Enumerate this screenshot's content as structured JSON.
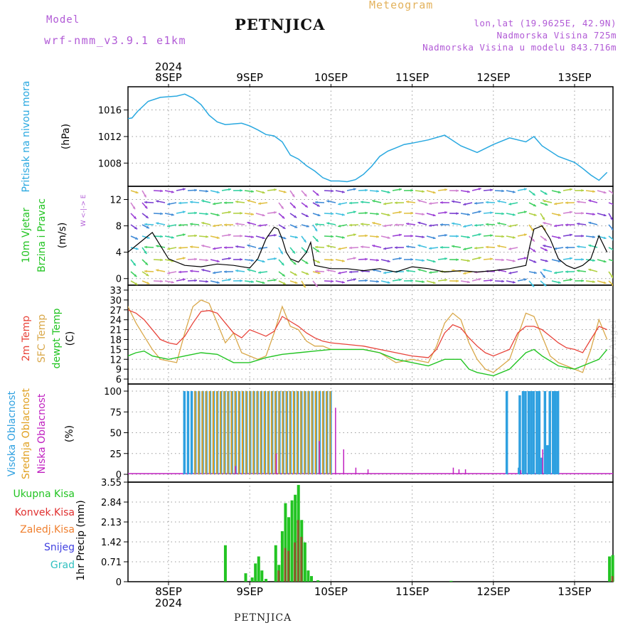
{
  "header": {
    "model_label": "Model",
    "model_name": "wrf-nmm_v3.9.1 e1km",
    "title": "PETNJICA",
    "meteogram": "Meteogram",
    "lonlat": "lon,lat (19.9625E, 42.9N)",
    "altitude": "Nadmorska Visina 725m",
    "model_altitude": "Nadmorska Visina u modelu 843.716m"
  },
  "footer": {
    "station": "PETNJICA",
    "credit": "made by Angel"
  },
  "colors": {
    "pressure": "#28a8e0",
    "t2m": "#e8433a",
    "sfc": "#d9a84a",
    "dewpt": "#22c422",
    "wind_speed": "#000000",
    "gust": "#ff6a2a",
    "cloud_high": "#2ea0e0",
    "cloud_mid": "#e0a020",
    "cloud_low": "#c020c0",
    "rain_total": "#22c422",
    "rain_conv": "#e03030",
    "rain_strat": "#f08030",
    "snow": "#4040e0",
    "grad": "#30c0c0"
  },
  "chart_data": [
    {
      "type": "line",
      "panel": "pressure",
      "ylabel": "Pritisak na nivou mora",
      "unit": "(hPa)",
      "ylim": [
        1004.5,
        1019.5
      ],
      "yticks": [
        "1008",
        "1012",
        "1016"
      ],
      "x_days": [
        {
          "label": "8SEP",
          "year": "2024"
        },
        {
          "label": "9SEP"
        },
        {
          "label": "10SEP"
        },
        {
          "label": "11SEP"
        },
        {
          "label": "12SEP"
        },
        {
          "label": "13SEP"
        }
      ],
      "series": [
        {
          "x": [
            -0.6,
            -0.55,
            -0.45,
            -0.38,
            -0.25,
            -0.1,
            0.1,
            0.2,
            0.3,
            0.4,
            0.5,
            0.6,
            0.7,
            0.8,
            0.9,
            1.0,
            1.1,
            1.2,
            1.3,
            1.4,
            1.5,
            1.6,
            1.7,
            1.8,
            1.9,
            2.0,
            2.1,
            2.2,
            2.3,
            2.4,
            2.5,
            2.6,
            2.7,
            2.8,
            2.9,
            3.0,
            3.2,
            3.4,
            3.6,
            3.8,
            4.0,
            4.2,
            4.4,
            4.5,
            4.6,
            4.8,
            5.0,
            5.1,
            5.2,
            5.3,
            5.4
          ],
          "y": [
            1015.5,
            1014.6,
            1014.8,
            1015.8,
            1017.3,
            1017.9,
            1018.1,
            1018.4,
            1017.8,
            1016.8,
            1015.2,
            1014.2,
            1013.8,
            1013.9,
            1014.0,
            1013.6,
            1013.0,
            1012.3,
            1012.1,
            1011.2,
            1009.2,
            1008.6,
            1007.6,
            1006.8,
            1005.8,
            1005.3,
            1005.3,
            1005.2,
            1005.5,
            1006.3,
            1007.5,
            1009.0,
            1009.8,
            1010.3,
            1010.8,
            1011.0,
            1011.5,
            1012.2,
            1010.6,
            1009.6,
            1010.8,
            1011.8,
            1011.2,
            1012.0,
            1010.6,
            1009.0,
            1008.1,
            1007.2,
            1006.2,
            1005.4,
            1006.6
          ]
        }
      ]
    },
    {
      "type": "line",
      "panel": "wind",
      "ylabel": [
        "10m Vjetar",
        "Brzina i Pravac"
      ],
      "unit": "(m/s)",
      "compass": "N\n|\nW <-|-> E\n|\nS",
      "ylim": [
        -1,
        14
      ],
      "yticks": [
        "0",
        "4",
        "8",
        "12"
      ],
      "series": [
        {
          "name": "speed",
          "x": [
            -0.6,
            -0.5,
            -0.4,
            -0.3,
            -0.2,
            -0.1,
            0.0,
            0.2,
            0.4,
            0.6,
            0.8,
            1.0,
            1.1,
            1.2,
            1.3,
            1.35,
            1.4,
            1.45,
            1.5,
            1.6,
            1.7,
            1.75,
            1.8,
            2.0,
            2.2,
            2.4,
            2.6,
            2.8,
            3.0,
            3.2,
            3.4,
            3.6,
            3.8,
            4.0,
            4.2,
            4.4,
            4.45,
            4.5,
            4.6,
            4.7,
            4.8,
            4.9,
            5.0,
            5.1,
            5.2,
            5.3,
            5.4
          ],
          "y": [
            3,
            4,
            5,
            6,
            7,
            5,
            3,
            2,
            1.8,
            2.2,
            2.0,
            1.6,
            3.0,
            6.0,
            7.8,
            7.5,
            6.0,
            4.0,
            3.0,
            2.5,
            4.0,
            5.5,
            2.0,
            1.5,
            1.5,
            1.2,
            1.5,
            1.0,
            1.8,
            1.5,
            1.0,
            1.2,
            1.0,
            1.2,
            1.5,
            2.0,
            5.0,
            7.5,
            8.0,
            6.0,
            3.0,
            2.0,
            1.5,
            2.0,
            3.0,
            6.5,
            4.0
          ]
        }
      ]
    },
    {
      "type": "line",
      "panel": "temperature",
      "ylabel": [
        "2m Temp",
        "SFC Temp",
        "dewpt Temp"
      ],
      "unit": "(C)",
      "ylim": [
        4.5,
        34.5
      ],
      "yticks": [
        "6",
        "9",
        "12",
        "15",
        "18",
        "21",
        "24",
        "27",
        "30",
        "33"
      ],
      "series": [
        {
          "name": "2m Temp",
          "x": [
            -0.6,
            -0.5,
            -0.4,
            -0.3,
            -0.2,
            -0.1,
            0.0,
            0.1,
            0.2,
            0.3,
            0.4,
            0.5,
            0.6,
            0.7,
            0.8,
            0.9,
            1.0,
            1.1,
            1.2,
            1.3,
            1.4,
            1.5,
            1.6,
            1.7,
            1.8,
            1.9,
            2.0,
            2.2,
            2.4,
            2.6,
            2.8,
            3.0,
            3.2,
            3.3,
            3.4,
            3.5,
            3.6,
            3.7,
            3.8,
            3.9,
            4.0,
            4.2,
            4.3,
            4.4,
            4.5,
            4.6,
            4.7,
            4.8,
            4.9,
            5.0,
            5.1,
            5.2,
            5.3,
            5.4
          ],
          "y": [
            26,
            27,
            26,
            24,
            21,
            18,
            17,
            16.5,
            19,
            23,
            26.5,
            26.8,
            26,
            23,
            20,
            18.5,
            21,
            20,
            19,
            20.5,
            25,
            23.5,
            22,
            20,
            18.5,
            17.5,
            17,
            16.5,
            16,
            15,
            14,
            13,
            12.5,
            15,
            20,
            22.5,
            21.5,
            18.5,
            16,
            14,
            13,
            15,
            20,
            22,
            22,
            21,
            19,
            17,
            15.5,
            15,
            14,
            18,
            22,
            21
          ]
        },
        {
          "name": "SFC Temp",
          "x": [
            -0.6,
            -0.5,
            -0.4,
            -0.3,
            -0.2,
            -0.1,
            0.0,
            0.1,
            0.2,
            0.3,
            0.4,
            0.5,
            0.6,
            0.7,
            0.8,
            0.9,
            1.0,
            1.1,
            1.2,
            1.3,
            1.4,
            1.5,
            1.6,
            1.7,
            1.8,
            1.9,
            2.0,
            2.2,
            2.4,
            2.6,
            2.8,
            3.0,
            3.2,
            3.3,
            3.4,
            3.5,
            3.6,
            3.7,
            3.8,
            3.9,
            4.0,
            4.2,
            4.3,
            4.4,
            4.5,
            4.6,
            4.7,
            4.8,
            4.9,
            5.0,
            5.1,
            5.2,
            5.3,
            5.4
          ],
          "y": [
            33,
            28,
            23,
            19,
            15,
            12,
            11.5,
            11,
            20,
            28,
            30,
            29,
            23,
            17,
            20,
            14,
            13,
            12,
            13,
            20,
            28,
            22,
            21,
            17.5,
            16,
            16,
            15,
            15,
            15,
            14,
            11,
            12,
            11,
            16,
            23,
            26,
            24,
            17,
            12,
            9,
            8,
            12,
            19,
            26,
            25,
            19,
            13,
            11,
            10,
            9,
            8,
            15,
            24,
            18
          ]
        },
        {
          "name": "dewpt Temp",
          "x": [
            -0.6,
            -0.5,
            -0.4,
            -0.3,
            -0.2,
            -0.1,
            0.0,
            0.2,
            0.4,
            0.6,
            0.8,
            1.0,
            1.2,
            1.4,
            1.6,
            1.8,
            2.0,
            2.2,
            2.4,
            2.6,
            2.8,
            3.0,
            3.2,
            3.4,
            3.6,
            3.7,
            3.8,
            4.0,
            4.2,
            4.4,
            4.5,
            4.6,
            4.8,
            5.0,
            5.2,
            5.3,
            5.4
          ],
          "y": [
            11.5,
            13,
            14,
            14.5,
            13,
            12.5,
            12,
            13,
            14,
            13.5,
            11,
            11,
            12.5,
            13.5,
            14,
            14.5,
            15,
            15,
            15,
            14,
            12,
            11,
            10,
            12,
            12,
            9,
            8,
            7,
            9,
            14,
            15,
            13,
            10,
            9,
            11,
            12,
            15
          ]
        }
      ]
    },
    {
      "type": "bar",
      "panel": "clouds",
      "ylabel": [
        "Visoka Oblacnost",
        "Srednja Oblacnost",
        "Niska Oblacnost"
      ],
      "unit": "(%)",
      "ylim": [
        0,
        100
      ],
      "yticks": [
        "0",
        "25",
        "50",
        "75",
        "100"
      ],
      "series": [
        {
          "name": "Visoka Oblacnost",
          "x_from": 0.18,
          "x_to": 2.02,
          "step": 0.045,
          "value": 100
        },
        {
          "name": "Srednja Oblacnost",
          "x_from": 0.3,
          "x_to": 2.0,
          "step": 0.045,
          "value": 100
        },
        {
          "name": "Niska Oblacnost",
          "x": [
            0.82,
            1.32,
            1.85,
            2.05,
            2.15,
            2.3,
            2.45,
            3.5,
            3.57,
            3.65,
            4.33,
            4.6
          ],
          "values": [
            10,
            25,
            40,
            80,
            30,
            8,
            6,
            8,
            6,
            6,
            5,
            30
          ]
        },
        {
          "name": "Visoka Oblacnost",
          "x": [
            4.15,
            4.3,
            4.31,
            4.35,
            4.38,
            4.42,
            4.45,
            4.48,
            4.52,
            4.55,
            4.58,
            4.62,
            4.65,
            4.68,
            4.72,
            4.75,
            4.78
          ],
          "values": [
            100,
            8,
            95,
            100,
            100,
            100,
            100,
            100,
            100,
            100,
            20,
            100,
            35,
            100,
            100,
            100,
            100
          ]
        }
      ]
    },
    {
      "type": "bar",
      "panel": "precipitation",
      "ylabel": "1hr Precip (mm)",
      "legend": [
        "Ukupna Kisa",
        "Konvek.Kisa",
        "Zaledj.Kisa",
        "Snijeg",
        "Grad"
      ],
      "ylim": [
        0,
        3.55
      ],
      "yticks": [
        "0",
        "0.71",
        "1.42",
        "2.13",
        "2.84",
        "3.55"
      ],
      "series": [
        {
          "name": "Ukupna Kisa",
          "x": [
            0.7,
            0.95,
            1.03,
            1.07,
            1.11,
            1.15,
            1.2,
            1.32,
            1.36,
            1.4,
            1.44,
            1.48,
            1.52,
            1.56,
            1.6,
            1.64,
            1.68,
            1.72,
            1.76,
            1.84,
            3.48,
            5.43,
            5.47
          ],
          "values": [
            1.3,
            0.3,
            0.15,
            0.65,
            0.9,
            0.4,
            0.1,
            1.3,
            0.6,
            1.8,
            2.8,
            2.3,
            2.9,
            3.1,
            3.45,
            2.2,
            1.4,
            0.4,
            0.2,
            0.05,
            0.03,
            0.9,
            0.95
          ]
        },
        {
          "name": "Konvek.Kisa",
          "x": [
            1.36,
            1.44,
            1.48,
            1.56,
            1.6,
            1.64,
            5.47
          ],
          "values": [
            0.4,
            1.2,
            1.1,
            1.4,
            2.2,
            1.6,
            0.2
          ]
        }
      ]
    }
  ]
}
